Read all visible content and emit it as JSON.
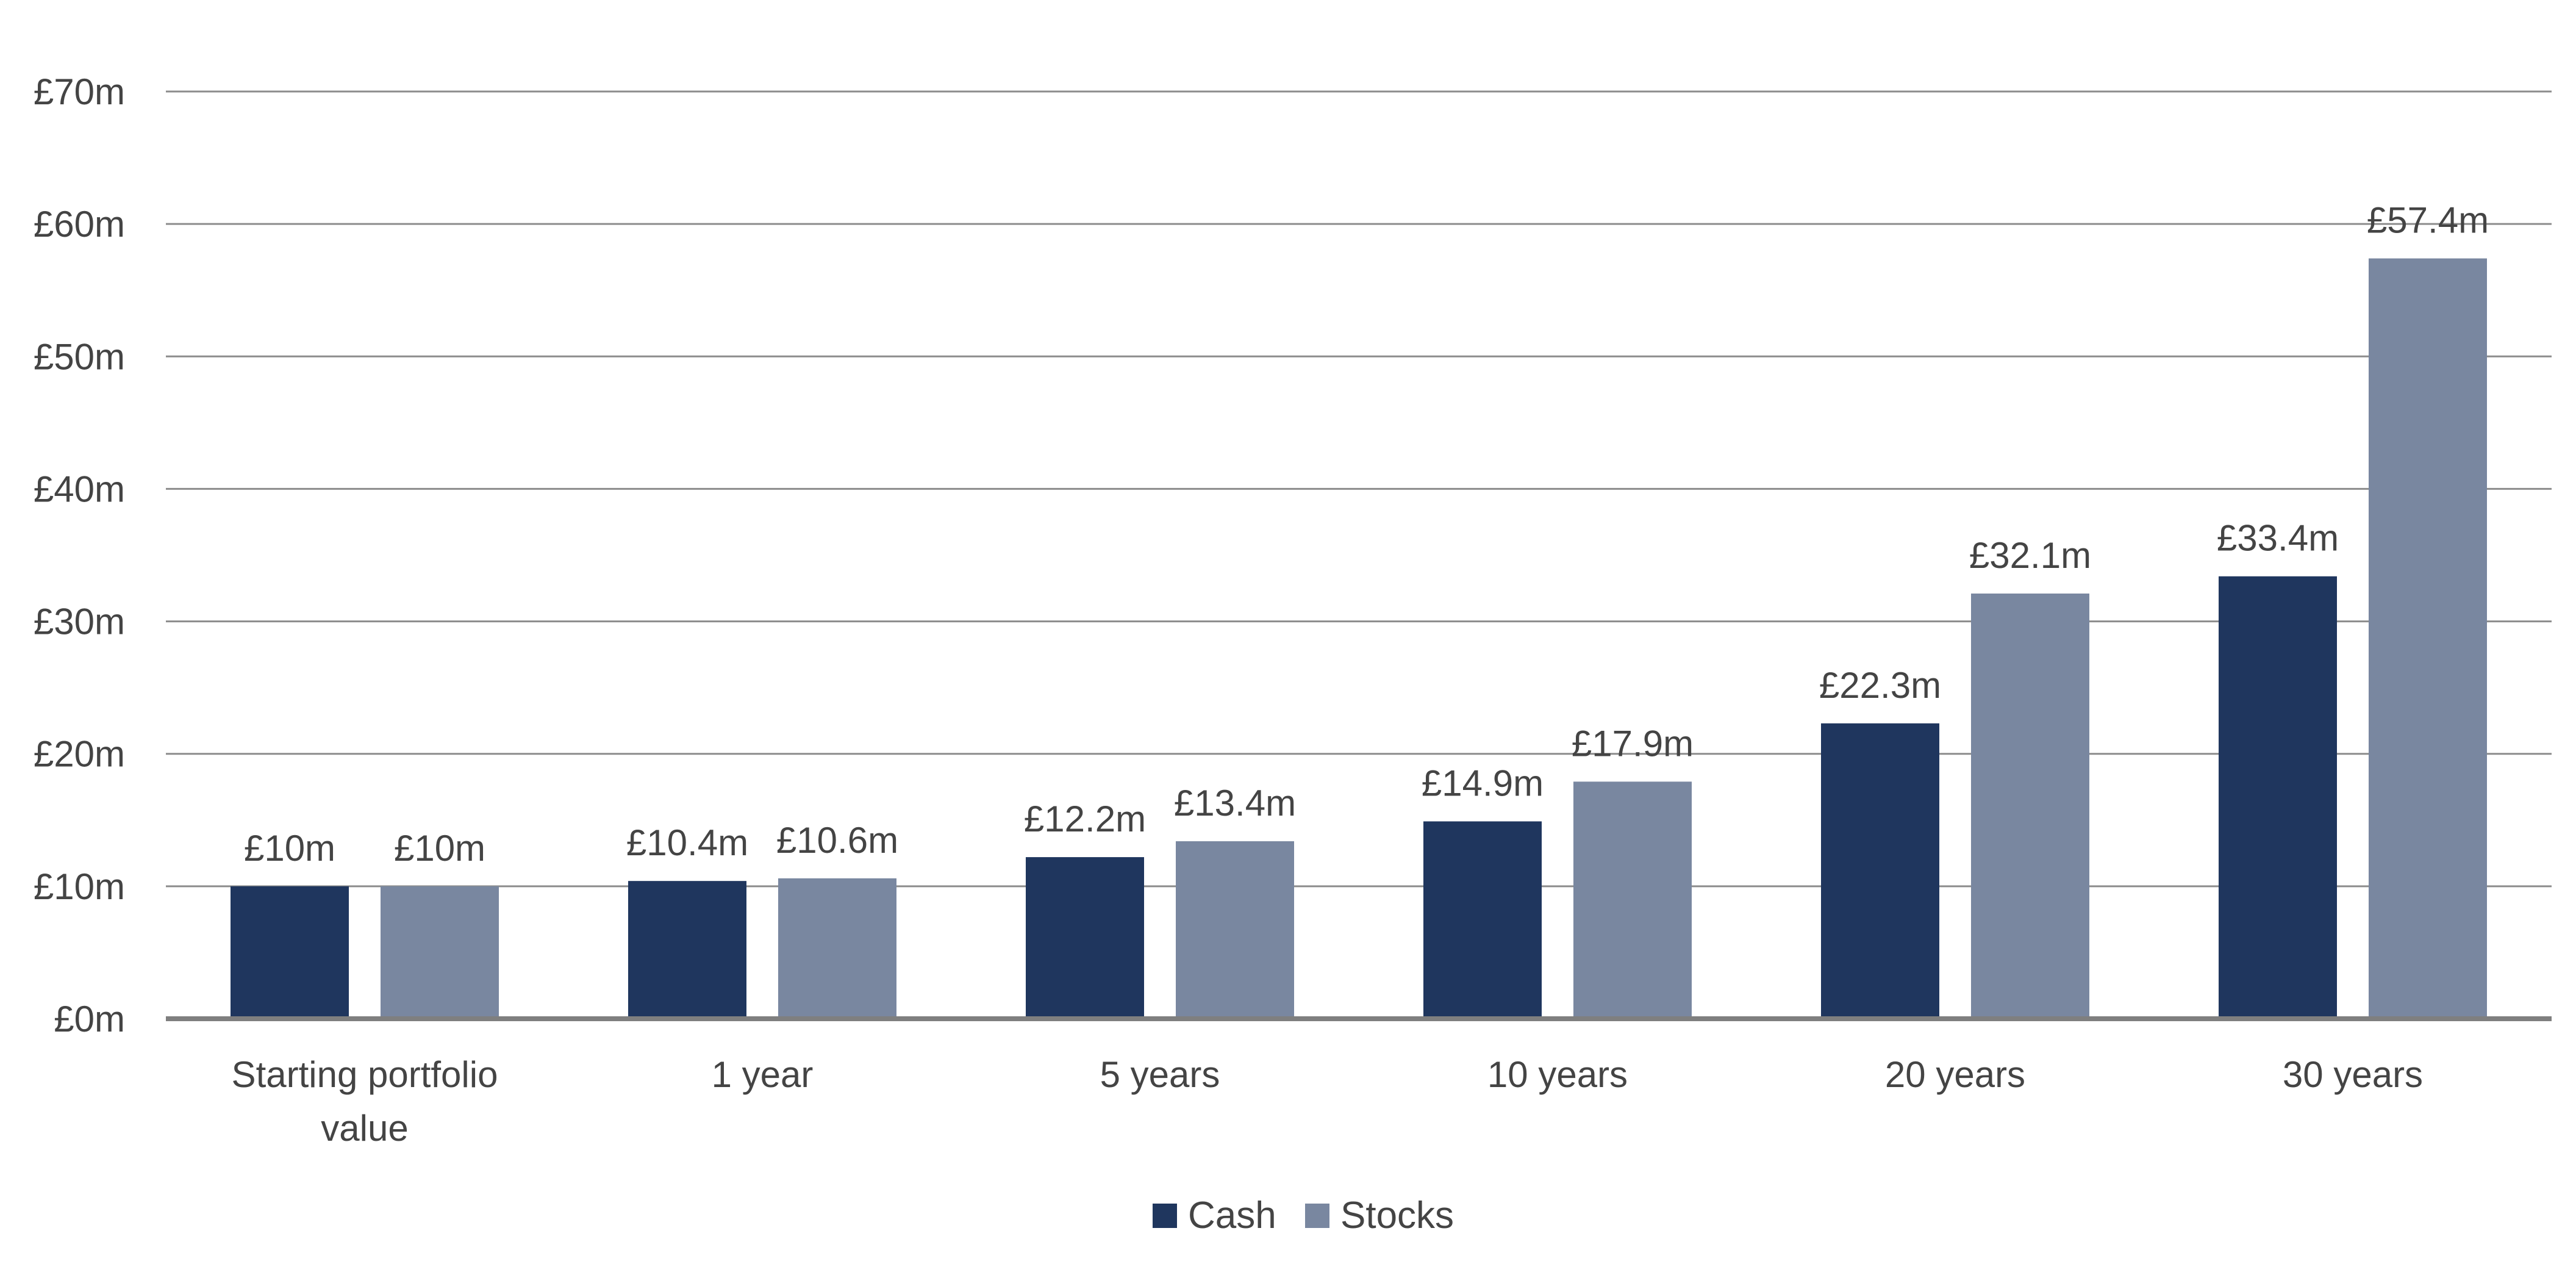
{
  "chart_data": {
    "type": "bar",
    "title": "",
    "xlabel": "",
    "ylabel": "",
    "ylim": [
      0,
      70
    ],
    "yticks": [
      0,
      10,
      20,
      30,
      40,
      50,
      60,
      70
    ],
    "ytick_labels": [
      "£0m",
      "£10m",
      "£20m",
      "£30m",
      "£40m",
      "£50m",
      "£60m",
      "£70m"
    ],
    "grid": true,
    "legend_position": "bottom-center",
    "categories": [
      [
        "Starting portfolio",
        "value"
      ],
      [
        "1 year"
      ],
      [
        "5 years"
      ],
      [
        "10 years"
      ],
      [
        "20 years"
      ],
      [
        "30 years"
      ]
    ],
    "series": [
      {
        "name": "Cash",
        "color": "#1f365e",
        "values": [
          10,
          10.4,
          12.2,
          14.9,
          22.3,
          33.4
        ],
        "labels": [
          "£10m",
          "£10.4m",
          "£12.2m",
          "£14.9m",
          "£22.3m",
          "£33.4m"
        ]
      },
      {
        "name": "Stocks",
        "color": "#7987a0",
        "values": [
          10,
          10.6,
          13.4,
          17.9,
          32.1,
          57.4
        ],
        "labels": [
          "£10m",
          "£10.6m",
          "£13.4m",
          "£17.9m",
          "£32.1m",
          "£57.4m"
        ]
      }
    ],
    "colors": {
      "gridline": "#8c8c8c",
      "axis": "#7f7f7f",
      "text": "#444444"
    }
  }
}
